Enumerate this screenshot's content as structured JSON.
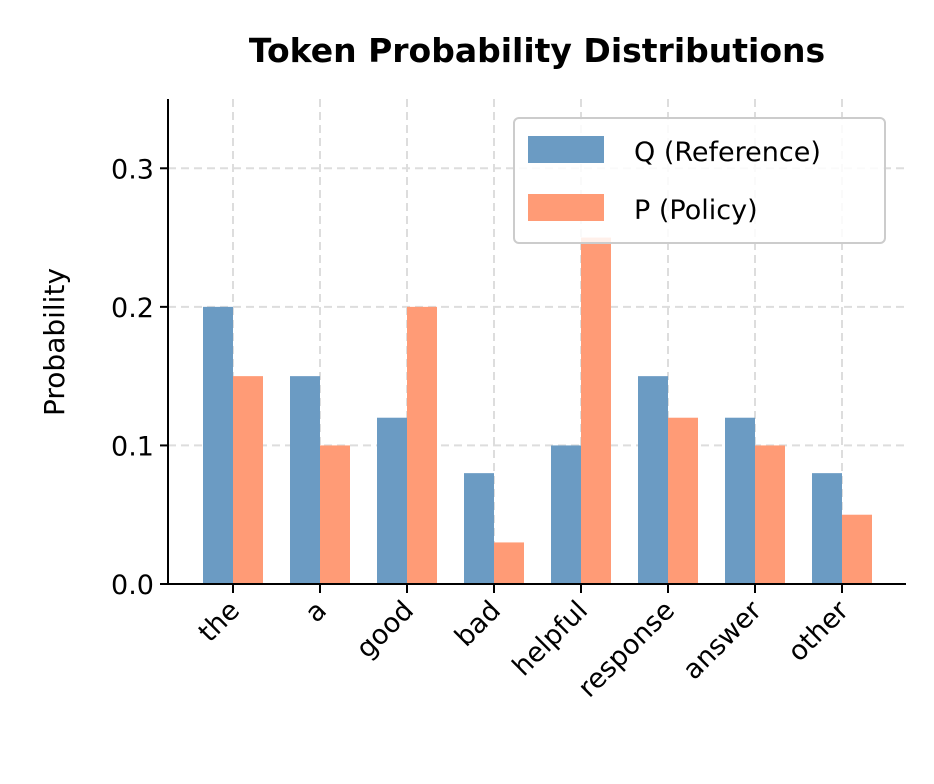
{
  "chart_data": {
    "type": "bar",
    "title": "Token Probability Distributions",
    "xlabel": "",
    "ylabel": "Probability",
    "categories": [
      "the",
      "a",
      "good",
      "bad",
      "helpful",
      "response",
      "answer",
      "other"
    ],
    "series": [
      {
        "name": "Q (Reference)",
        "color": "#6b9bc3",
        "values": [
          0.2,
          0.15,
          0.12,
          0.08,
          0.1,
          0.15,
          0.12,
          0.08
        ]
      },
      {
        "name": "P (Policy)",
        "color": "#ff9b76",
        "values": [
          0.15,
          0.1,
          0.2,
          0.03,
          0.25,
          0.12,
          0.1,
          0.05
        ]
      }
    ],
    "ylim": [
      0,
      0.35
    ],
    "yticks": [
      "0.0",
      "0.1",
      "0.2",
      "0.3"
    ],
    "grid": true,
    "legend_position": "top-right"
  }
}
